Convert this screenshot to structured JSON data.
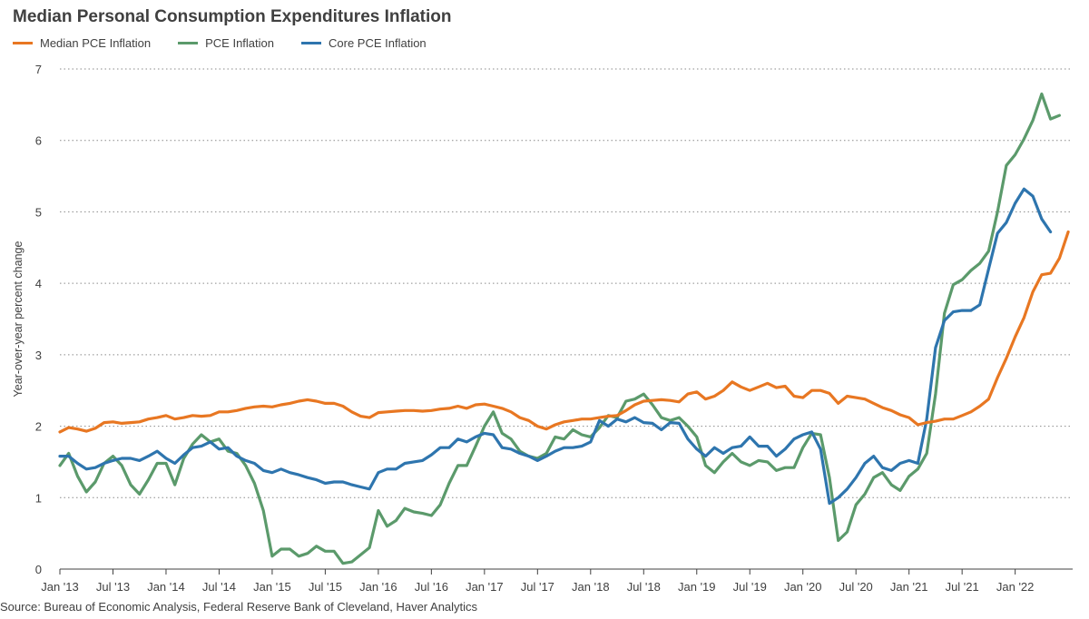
{
  "title": "Median Personal Consumption Expenditures Inflation",
  "source": "Source: Bureau of Economic Analysis, Federal Reserve Bank of Cleveland, Haver Analytics",
  "chart_data": {
    "type": "line",
    "title": "Median Personal Consumption Expenditures Inflation",
    "xlabel": "",
    "ylabel": "Year-over-year percent change",
    "ylim": [
      0,
      7
    ],
    "yticks": [
      "0",
      "1",
      "2",
      "3",
      "4",
      "5",
      "6",
      "7"
    ],
    "xticks": [
      "Jan '13",
      "Jul '13",
      "Jan '14",
      "Jul '14",
      "Jan '15",
      "Jul '15",
      "Jan '16",
      "Jul '16",
      "Jan '17",
      "Jul '17",
      "Jan '18",
      "Jul '18",
      "Jan '19",
      "Jul '19",
      "Jan '20",
      "Jul '20",
      "Jan '21",
      "Jul '21",
      "Jan '22"
    ],
    "x_start": "2013-01",
    "x_end": "2022-05",
    "grid": "horizontal dotted",
    "legend_position": "top-left",
    "series": [
      {
        "name": "Median PCE Inflation",
        "color": "#E87722",
        "values": [
          1.92,
          1.98,
          1.96,
          1.93,
          1.97,
          2.05,
          2.06,
          2.04,
          2.05,
          2.06,
          2.1,
          2.12,
          2.15,
          2.1,
          2.12,
          2.15,
          2.14,
          2.15,
          2.2,
          2.2,
          2.22,
          2.25,
          2.27,
          2.28,
          2.27,
          2.3,
          2.32,
          2.35,
          2.37,
          2.35,
          2.32,
          2.32,
          2.28,
          2.2,
          2.14,
          2.12,
          2.19,
          2.2,
          2.21,
          2.22,
          2.22,
          2.21,
          2.22,
          2.24,
          2.25,
          2.28,
          2.25,
          2.3,
          2.31,
          2.28,
          2.25,
          2.2,
          2.12,
          2.08,
          2.0,
          1.96,
          2.02,
          2.06,
          2.08,
          2.1,
          2.1,
          2.12,
          2.14,
          2.15,
          2.22,
          2.3,
          2.35,
          2.36,
          2.37,
          2.36,
          2.34,
          2.45,
          2.48,
          2.38,
          2.42,
          2.5,
          2.62,
          2.55,
          2.5,
          2.55,
          2.6,
          2.54,
          2.56,
          2.42,
          2.4,
          2.5,
          2.5,
          2.46,
          2.32,
          2.42,
          2.4,
          2.38,
          2.32,
          2.26,
          2.22,
          2.16,
          2.12,
          2.02,
          2.05,
          2.07,
          2.1,
          2.1,
          2.15,
          2.2,
          2.28,
          2.38,
          2.68,
          2.95,
          3.25,
          3.52,
          3.88,
          4.12,
          4.14,
          4.35,
          4.72
        ]
      },
      {
        "name": "PCE Inflation",
        "color": "#5B9A6B",
        "values": [
          1.45,
          1.62,
          1.3,
          1.08,
          1.22,
          1.48,
          1.58,
          1.45,
          1.18,
          1.05,
          1.25,
          1.48,
          1.48,
          1.18,
          1.55,
          1.75,
          1.88,
          1.78,
          1.82,
          1.65,
          1.62,
          1.45,
          1.2,
          0.82,
          0.18,
          0.28,
          0.28,
          0.18,
          0.22,
          0.32,
          0.25,
          0.25,
          0.08,
          0.1,
          0.2,
          0.3,
          0.82,
          0.6,
          0.68,
          0.85,
          0.8,
          0.78,
          0.75,
          0.9,
          1.2,
          1.45,
          1.45,
          1.72,
          2.0,
          2.2,
          1.9,
          1.82,
          1.65,
          1.58,
          1.55,
          1.62,
          1.85,
          1.82,
          1.95,
          1.88,
          1.85,
          1.98,
          2.15,
          2.12,
          2.35,
          2.38,
          2.45,
          2.3,
          2.12,
          2.08,
          2.12,
          2.0,
          1.85,
          1.45,
          1.35,
          1.5,
          1.62,
          1.5,
          1.45,
          1.52,
          1.5,
          1.38,
          1.42,
          1.42,
          1.7,
          1.9,
          1.88,
          1.28,
          0.4,
          0.52,
          0.9,
          1.05,
          1.28,
          1.35,
          1.18,
          1.1,
          1.3,
          1.4,
          1.62,
          2.45,
          3.58,
          3.98,
          4.05,
          4.18,
          4.28,
          4.45,
          5.0,
          5.65,
          5.8,
          6.02,
          6.28,
          6.65,
          6.3,
          6.35
        ]
      },
      {
        "name": "Core PCE Inflation",
        "color": "#2E75AE",
        "values": [
          1.58,
          1.58,
          1.48,
          1.4,
          1.42,
          1.48,
          1.52,
          1.55,
          1.55,
          1.52,
          1.58,
          1.65,
          1.55,
          1.48,
          1.6,
          1.7,
          1.72,
          1.78,
          1.68,
          1.7,
          1.58,
          1.52,
          1.48,
          1.38,
          1.35,
          1.4,
          1.35,
          1.32,
          1.28,
          1.25,
          1.2,
          1.22,
          1.22,
          1.18,
          1.15,
          1.12,
          1.35,
          1.4,
          1.4,
          1.48,
          1.5,
          1.52,
          1.6,
          1.7,
          1.7,
          1.82,
          1.78,
          1.85,
          1.9,
          1.88,
          1.7,
          1.68,
          1.62,
          1.58,
          1.52,
          1.58,
          1.65,
          1.7,
          1.7,
          1.72,
          1.78,
          2.08,
          2.0,
          2.1,
          2.06,
          2.12,
          2.05,
          2.04,
          1.95,
          2.05,
          2.04,
          1.82,
          1.68,
          1.58,
          1.7,
          1.62,
          1.7,
          1.72,
          1.85,
          1.72,
          1.72,
          1.58,
          1.68,
          1.82,
          1.88,
          1.92,
          1.68,
          0.92,
          1.0,
          1.12,
          1.28,
          1.48,
          1.58,
          1.42,
          1.38,
          1.48,
          1.52,
          1.48,
          2.1,
          3.1,
          3.48,
          3.6,
          3.62,
          3.62,
          3.7,
          4.2,
          4.7,
          4.85,
          5.12,
          5.32,
          5.22,
          4.9,
          4.72
        ]
      }
    ]
  }
}
